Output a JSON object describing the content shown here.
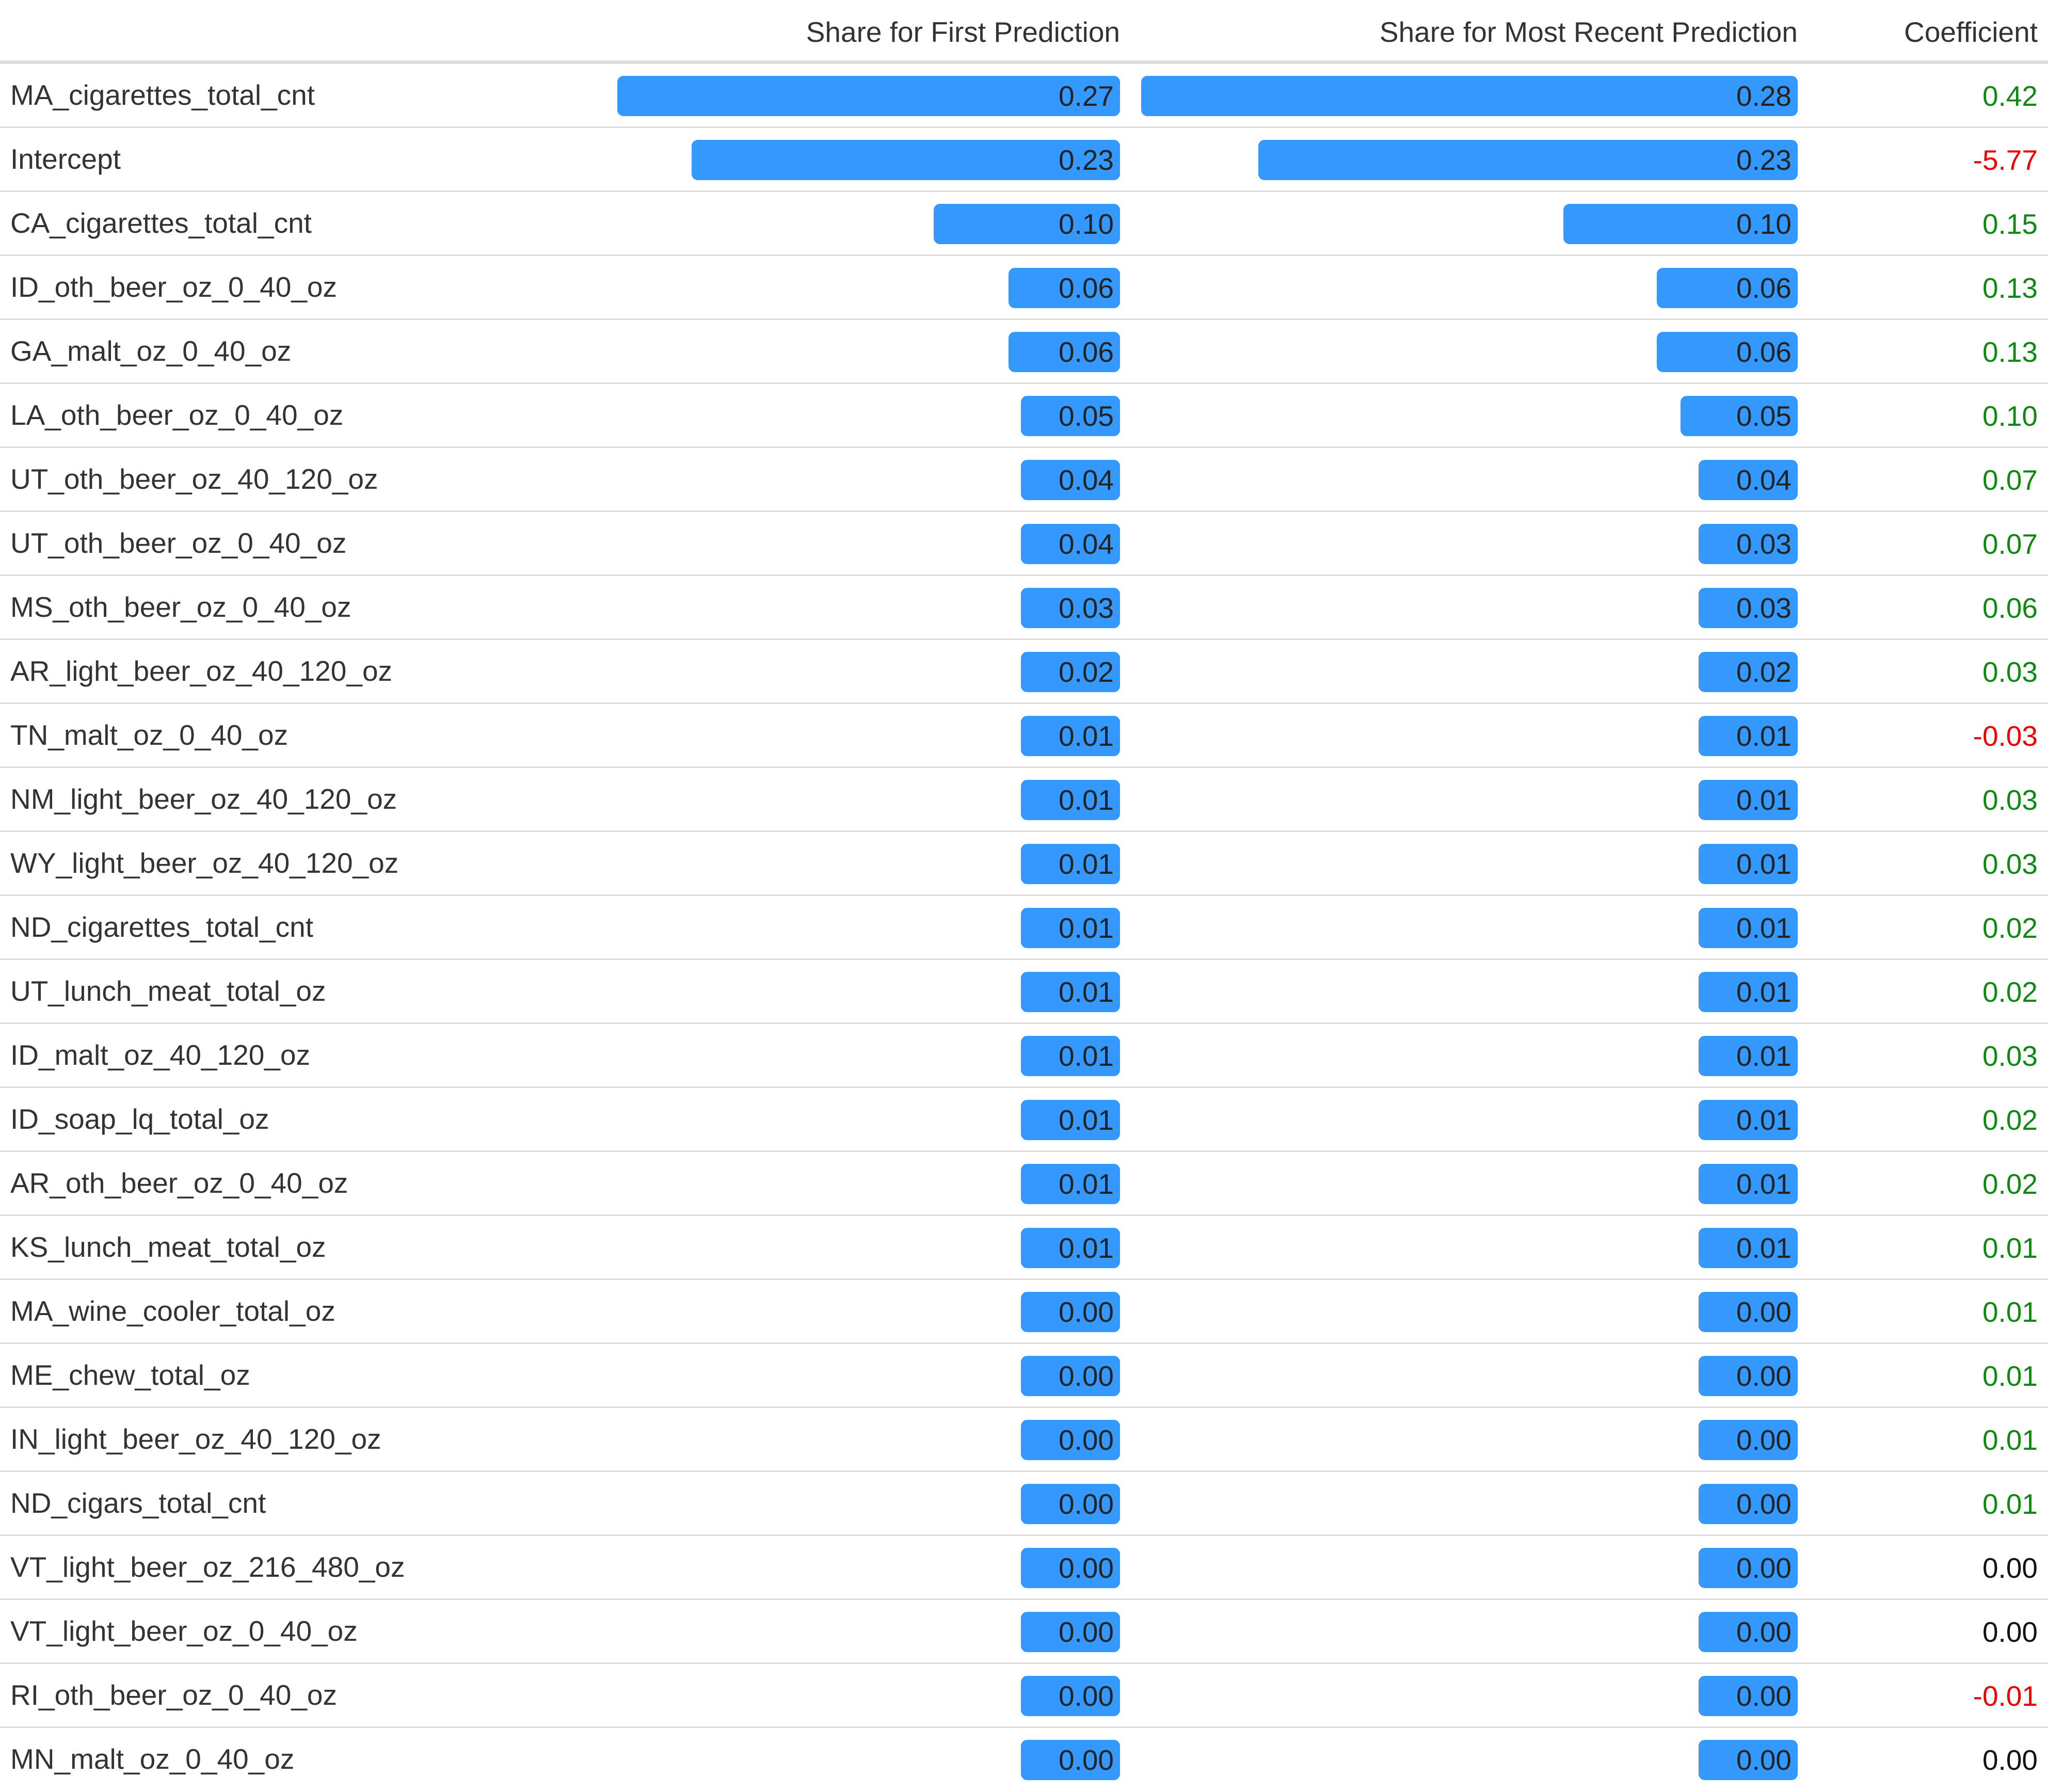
{
  "colors": {
    "bar": "#3399ff",
    "positive": "#118811",
    "negative": "#ee0000",
    "zero": "#111111",
    "rule": "#dddddd"
  },
  "chart_data": {
    "type": "table",
    "columns": [
      "",
      "Share for First Prediction",
      "Share for Most Recent Prediction",
      "Coefficient"
    ],
    "share_scale_max": 0.28,
    "rows": [
      {
        "feature": "MA_cigarettes_total_cnt",
        "first": "0.27",
        "recent": "0.28",
        "coef": "0.42"
      },
      {
        "feature": "Intercept",
        "first": "0.23",
        "recent": "0.23",
        "coef": "-5.77"
      },
      {
        "feature": "CA_cigarettes_total_cnt",
        "first": "0.10",
        "recent": "0.10",
        "coef": "0.15"
      },
      {
        "feature": "ID_oth_beer_oz_0_40_oz",
        "first": "0.06",
        "recent": "0.06",
        "coef": "0.13"
      },
      {
        "feature": "GA_malt_oz_0_40_oz",
        "first": "0.06",
        "recent": "0.06",
        "coef": "0.13"
      },
      {
        "feature": "LA_oth_beer_oz_0_40_oz",
        "first": "0.05",
        "recent": "0.05",
        "coef": "0.10"
      },
      {
        "feature": "UT_oth_beer_oz_40_120_oz",
        "first": "0.04",
        "recent": "0.04",
        "coef": "0.07"
      },
      {
        "feature": "UT_oth_beer_oz_0_40_oz",
        "first": "0.04",
        "recent": "0.03",
        "coef": "0.07"
      },
      {
        "feature": "MS_oth_beer_oz_0_40_oz",
        "first": "0.03",
        "recent": "0.03",
        "coef": "0.06"
      },
      {
        "feature": "AR_light_beer_oz_40_120_oz",
        "first": "0.02",
        "recent": "0.02",
        "coef": "0.03"
      },
      {
        "feature": "TN_malt_oz_0_40_oz",
        "first": "0.01",
        "recent": "0.01",
        "coef": "-0.03"
      },
      {
        "feature": "NM_light_beer_oz_40_120_oz",
        "first": "0.01",
        "recent": "0.01",
        "coef": "0.03"
      },
      {
        "feature": "WY_light_beer_oz_40_120_oz",
        "first": "0.01",
        "recent": "0.01",
        "coef": "0.03"
      },
      {
        "feature": "ND_cigarettes_total_cnt",
        "first": "0.01",
        "recent": "0.01",
        "coef": "0.02"
      },
      {
        "feature": "UT_lunch_meat_total_oz",
        "first": "0.01",
        "recent": "0.01",
        "coef": "0.02"
      },
      {
        "feature": "ID_malt_oz_40_120_oz",
        "first": "0.01",
        "recent": "0.01",
        "coef": "0.03"
      },
      {
        "feature": "ID_soap_lq_total_oz",
        "first": "0.01",
        "recent": "0.01",
        "coef": "0.02"
      },
      {
        "feature": "AR_oth_beer_oz_0_40_oz",
        "first": "0.01",
        "recent": "0.01",
        "coef": "0.02"
      },
      {
        "feature": "KS_lunch_meat_total_oz",
        "first": "0.01",
        "recent": "0.01",
        "coef": "0.01"
      },
      {
        "feature": "MA_wine_cooler_total_oz",
        "first": "0.00",
        "recent": "0.00",
        "coef": "0.01"
      },
      {
        "feature": "ME_chew_total_oz",
        "first": "0.00",
        "recent": "0.00",
        "coef": "0.01"
      },
      {
        "feature": "IN_light_beer_oz_40_120_oz",
        "first": "0.00",
        "recent": "0.00",
        "coef": "0.01"
      },
      {
        "feature": "ND_cigars_total_cnt",
        "first": "0.00",
        "recent": "0.00",
        "coef": "0.01"
      },
      {
        "feature": "VT_light_beer_oz_216_480_oz",
        "first": "0.00",
        "recent": "0.00",
        "coef": "0.00"
      },
      {
        "feature": "VT_light_beer_oz_0_40_oz",
        "first": "0.00",
        "recent": "0.00",
        "coef": "0.00"
      },
      {
        "feature": "RI_oth_beer_oz_0_40_oz",
        "first": "0.00",
        "recent": "0.00",
        "coef": "-0.01"
      },
      {
        "feature": "MN_malt_oz_0_40_oz",
        "first": "0.00",
        "recent": "0.00",
        "coef": "0.00"
      }
    ]
  }
}
